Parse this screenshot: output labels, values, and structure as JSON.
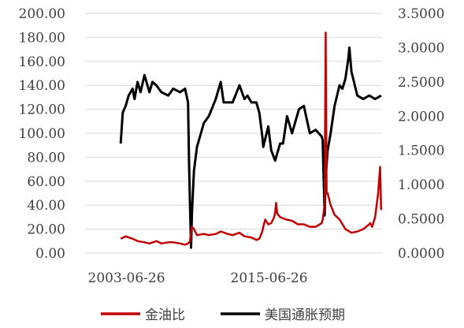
{
  "chart_data": {
    "type": "line",
    "x_tick_labels": [
      "2003-06-26",
      "2015-06-26"
    ],
    "x_range": [
      "2000-01-01",
      "2024-12-31"
    ],
    "left_axis": {
      "ticks": [
        "0.00",
        "20.00",
        "40.00",
        "60.00",
        "80.00",
        "100.00",
        "120.00",
        "140.00",
        "160.00",
        "180.00",
        "200.00"
      ],
      "ylim": [
        0,
        200
      ]
    },
    "right_axis": {
      "ticks": [
        "0.0000",
        "0.5000",
        "1.0000",
        "1.5000",
        "2.0000",
        "2.5000",
        "3.0000",
        "3.5000"
      ],
      "ylim": [
        0,
        3.5
      ]
    },
    "legend_position": "bottom",
    "series": [
      {
        "name": "金油比",
        "axis": "left",
        "color": "#c00000",
        "x": [
          "2003-01",
          "2003-06",
          "2004-01",
          "2004-06",
          "2005-01",
          "2005-06",
          "2006-01",
          "2006-06",
          "2007-01",
          "2007-06",
          "2008-01",
          "2008-06",
          "2008-09",
          "2008-11",
          "2008-12",
          "2009-01",
          "2009-03",
          "2009-06",
          "2010-01",
          "2010-06",
          "2011-01",
          "2011-06",
          "2012-01",
          "2012-06",
          "2013-01",
          "2013-06",
          "2014-01",
          "2014-06",
          "2014-09",
          "2014-12",
          "2015-01",
          "2015-03",
          "2015-06",
          "2015-09",
          "2015-12",
          "2016-01",
          "2016-02",
          "2016-03",
          "2016-06",
          "2016-12",
          "2017-06",
          "2017-12",
          "2018-06",
          "2018-12",
          "2019-06",
          "2019-12",
          "2020-01",
          "2020-03",
          "2020-04",
          "2020-05",
          "2020-06",
          "2020-09",
          "2021-01",
          "2021-06",
          "2021-12",
          "2022-06",
          "2022-12",
          "2023-06",
          "2023-12",
          "2024-01",
          "2024-03",
          "2024-06",
          "2024-09",
          "2024-11",
          "2024-12"
        ],
        "y": [
          12,
          14,
          12,
          10,
          9,
          8,
          10,
          8,
          9,
          9,
          8,
          7,
          8,
          10,
          18,
          22,
          20,
          15,
          16,
          15,
          16,
          18,
          16,
          15,
          17,
          14,
          13,
          11,
          12,
          18,
          22,
          28,
          24,
          25,
          30,
          34,
          42,
          33,
          30,
          28,
          27,
          24,
          24,
          22,
          22,
          25,
          28,
          40,
          184,
          50,
          50,
          40,
          32,
          28,
          20,
          17,
          18,
          20,
          24,
          25,
          22,
          30,
          50,
          72,
          36
        ]
      },
      {
        "name": "美国通胀预期",
        "axis": "right",
        "color": "#000000",
        "x": [
          "2003-01",
          "2003-03",
          "2003-06",
          "2003-09",
          "2004-01",
          "2004-03",
          "2004-06",
          "2004-09",
          "2005-01",
          "2005-06",
          "2005-09",
          "2006-01",
          "2006-06",
          "2007-01",
          "2007-06",
          "2008-01",
          "2008-06",
          "2008-09",
          "2008-10",
          "2008-11",
          "2008-12",
          "2009-01",
          "2009-03",
          "2009-06",
          "2010-01",
          "2010-06",
          "2011-01",
          "2011-06",
          "2011-09",
          "2012-01",
          "2012-06",
          "2013-01",
          "2013-06",
          "2013-09",
          "2014-01",
          "2014-06",
          "2014-09",
          "2014-12",
          "2015-01",
          "2015-06",
          "2015-09",
          "2016-01",
          "2016-02",
          "2016-06",
          "2016-09",
          "2017-01",
          "2017-06",
          "2018-01",
          "2018-06",
          "2018-12",
          "2019-06",
          "2019-12",
          "2020-01",
          "2020-03",
          "2020-04",
          "2020-06",
          "2020-09",
          "2021-01",
          "2021-06",
          "2021-09",
          "2021-12",
          "2022-03",
          "2022-04",
          "2022-06",
          "2022-12",
          "2023-06",
          "2023-12",
          "2024-06",
          "2024-12"
        ],
        "y": [
          1.6,
          2.05,
          2.15,
          2.3,
          2.4,
          2.25,
          2.5,
          2.35,
          2.6,
          2.35,
          2.5,
          2.45,
          2.35,
          2.3,
          2.4,
          2.35,
          2.4,
          2.2,
          1.3,
          0.7,
          0.08,
          0.6,
          1.2,
          1.55,
          1.9,
          2.0,
          2.25,
          2.5,
          2.2,
          2.2,
          2.2,
          2.45,
          2.25,
          2.3,
          2.2,
          2.2,
          2.05,
          1.7,
          1.55,
          1.85,
          1.5,
          1.35,
          1.4,
          1.6,
          1.6,
          2.0,
          1.75,
          2.1,
          2.15,
          1.75,
          1.8,
          1.7,
          1.65,
          0.55,
          1.1,
          1.5,
          1.75,
          2.15,
          2.45,
          2.4,
          2.55,
          2.85,
          3.0,
          2.65,
          2.3,
          2.25,
          2.3,
          2.25,
          2.3
        ]
      }
    ]
  }
}
